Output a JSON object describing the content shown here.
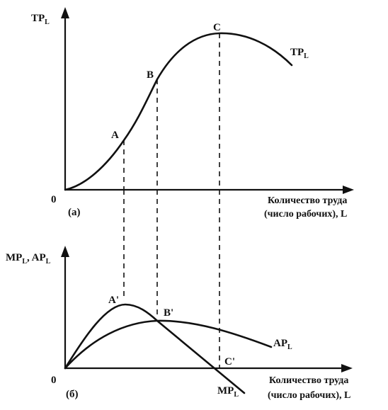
{
  "top_panel": {
    "y_axis_label": "TP",
    "y_axis_sub": "L",
    "origin_label": "0",
    "panel_label": "(а)",
    "x_axis_line1": "Количество труда",
    "x_axis_line2": "(число рабочих), L",
    "curve_label": "TP",
    "curve_label_sub": "L",
    "points": {
      "A": "A",
      "B": "B",
      "C": "C"
    }
  },
  "bottom_panel": {
    "y_axis_label": "MP",
    "y_axis_sub1": "L",
    "y_axis_mid": ", AP",
    "y_axis_sub2": "L",
    "origin_label": "0",
    "panel_label": "(б)",
    "x_axis_line1": "Количество труда",
    "x_axis_line2": "(число рабочих), L",
    "ap_label": "AP",
    "ap_sub": "L",
    "mp_label": "MP",
    "mp_sub": "L",
    "points": {
      "A": "A'",
      "B": "B'",
      "C": "C'"
    }
  }
}
